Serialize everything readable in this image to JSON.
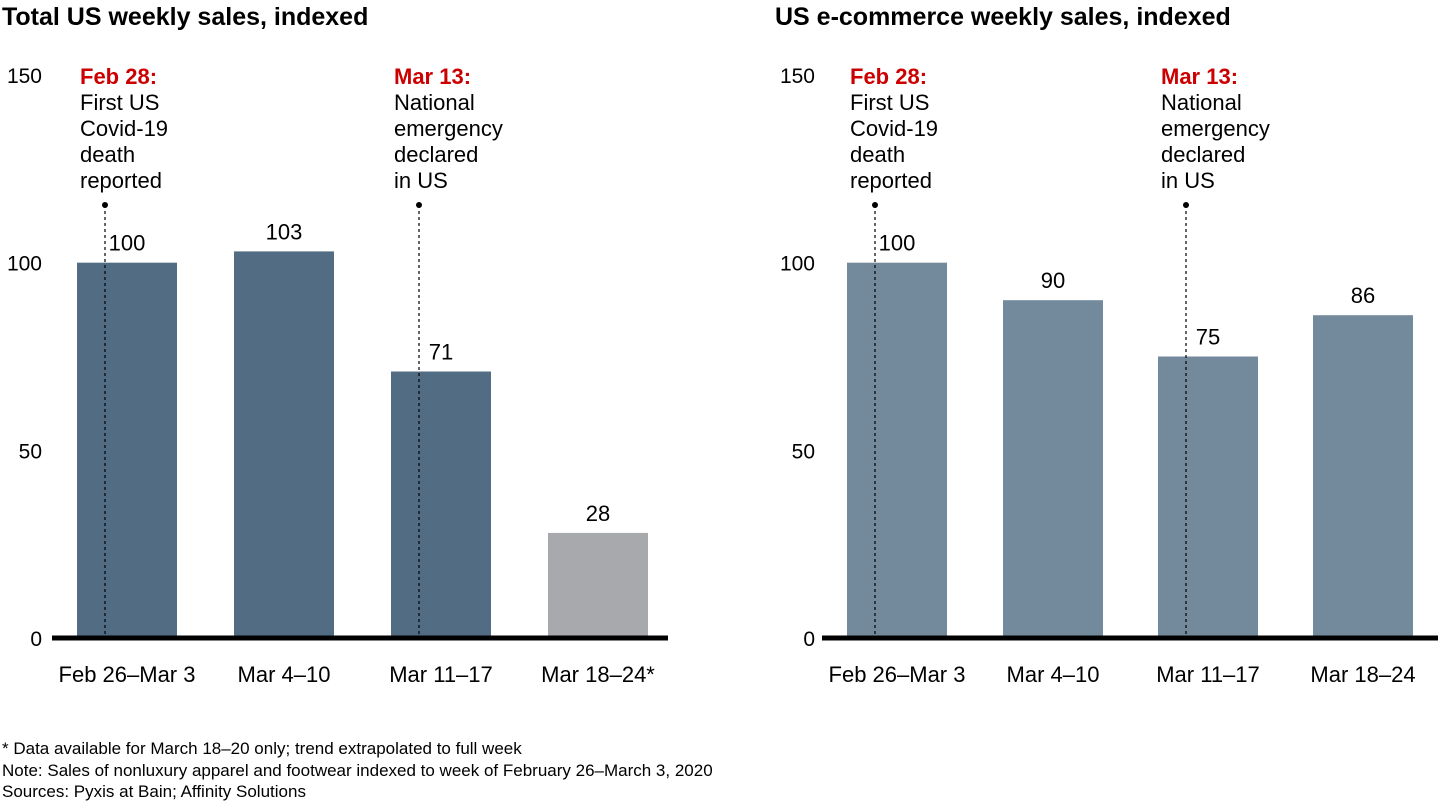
{
  "chart_data": [
    {
      "type": "bar",
      "title": "Total US weekly sales, indexed",
      "categories": [
        "Feb 26–Mar 3",
        "Mar 4–10",
        "Mar 11–17",
        "Mar 18–24*"
      ],
      "values": [
        100,
        103,
        71,
        28
      ],
      "value_labels": [
        "100",
        "103",
        "71",
        "28"
      ],
      "bar_colors": [
        "#526c84",
        "#526c84",
        "#526c84",
        "#a7a9ac"
      ],
      "ylim": [
        0,
        150
      ],
      "yticks": [
        0,
        50,
        100,
        150
      ],
      "grid": false,
      "annotations": [
        {
          "category_index": 0,
          "date_label": "Feb 28:",
          "lines": [
            "First US",
            "Covid-19",
            "death",
            "reported"
          ]
        },
        {
          "category_index": 2,
          "date_label": "Mar 13:",
          "lines": [
            "National",
            "emergency",
            "declared",
            "in US"
          ]
        }
      ]
    },
    {
      "type": "bar",
      "title": "US e-commerce weekly sales, indexed",
      "categories": [
        "Feb 26–Mar 3",
        "Mar 4–10",
        "Mar 11–17",
        "Mar 18–24"
      ],
      "values": [
        100,
        90,
        75,
        86
      ],
      "value_labels": [
        "100",
        "90",
        "75",
        "86"
      ],
      "bar_colors": [
        "#738a9d",
        "#738a9d",
        "#738a9d",
        "#738a9d"
      ],
      "ylim": [
        0,
        150
      ],
      "yticks": [
        0,
        50,
        100,
        150
      ],
      "grid": false,
      "annotations": [
        {
          "category_index": 0,
          "date_label": "Feb 28:",
          "lines": [
            "First US",
            "Covid-19",
            "death",
            "reported"
          ]
        },
        {
          "category_index": 2,
          "date_label": "Mar 13:",
          "lines": [
            "National",
            "emergency",
            "declared",
            "in US"
          ]
        }
      ]
    }
  ],
  "colors": {
    "annotation_date": "#cc0000",
    "axis": "#000000"
  },
  "footnotes": [
    "* Data available for March 18–20 only; trend extrapolated to full week",
    "Note: Sales of nonluxury apparel and footwear indexed to week of February 26–March 3, 2020",
    "Sources: Pyxis at Bain; Affinity Solutions"
  ]
}
